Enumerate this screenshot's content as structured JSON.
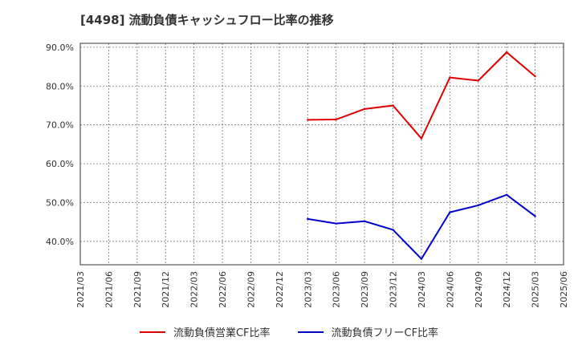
{
  "chart_data": {
    "type": "line",
    "title": "[4498]  流動負債キャッシュフロー比率の推移",
    "xlabel": "",
    "ylabel": "",
    "x_ticks": [
      "2021/03",
      "2021/06",
      "2021/09",
      "2021/12",
      "2022/03",
      "2022/06",
      "2022/09",
      "2022/12",
      "2023/03",
      "2023/06",
      "2023/09",
      "2023/12",
      "2024/03",
      "2024/06",
      "2024/09",
      "2024/12",
      "2025/03",
      "2025/06"
    ],
    "y_ticks": [
      "40.0%",
      "50.0%",
      "60.0%",
      "70.0%",
      "80.0%",
      "90.0%"
    ],
    "y_tick_values": [
      40,
      50,
      60,
      70,
      80,
      90
    ],
    "ylim": [
      34,
      91
    ],
    "grid": true,
    "legend_position": "bottom",
    "series": [
      {
        "name": "流動負債営業CF比率",
        "color": "#e00000",
        "x": [
          "2023/03",
          "2023/06",
          "2023/09",
          "2023/12",
          "2024/03",
          "2024/06",
          "2024/09",
          "2024/12",
          "2025/03"
        ],
        "values": [
          71.3,
          71.4,
          74.1,
          75.0,
          66.5,
          82.2,
          81.4,
          88.7,
          82.5
        ]
      },
      {
        "name": "流動負債フリーCF比率",
        "color": "#0000cc",
        "x": [
          "2023/03",
          "2023/06",
          "2023/09",
          "2023/12",
          "2024/03",
          "2024/06",
          "2024/09",
          "2024/12",
          "2025/03"
        ],
        "values": [
          45.8,
          44.6,
          45.2,
          43.0,
          35.5,
          47.5,
          49.3,
          52.0,
          46.5
        ]
      }
    ]
  }
}
